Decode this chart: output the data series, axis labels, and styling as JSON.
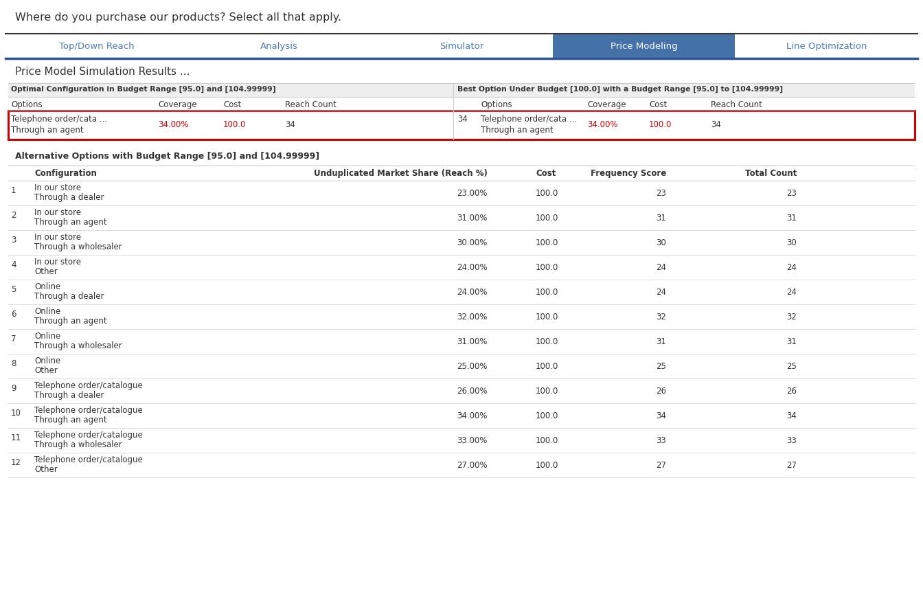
{
  "title_question": "Where do you purchase our products? Select all that apply.",
  "tabs": [
    "Top/Down Reach",
    "Analysis",
    "Simulator",
    "Price Modeling",
    "Line Optimization"
  ],
  "active_tab": "Price Modeling",
  "section_title": "Price Model Simulation Results ...",
  "optimal_header": "Optimal Configuration in Budget Range [95.0] and [104.99999]",
  "best_header": "Best Option Under Budget [100.0] with a Budget Range [95.0] to [104.99999]",
  "optimal_cols": [
    "Options",
    "Coverage",
    "Cost",
    "Reach Count"
  ],
  "best_cols": [
    "Options",
    "Coverage",
    "Cost",
    "Reach Count"
  ],
  "optimal_row_line1": "Telephone order/cata ...",
  "optimal_row_line2": "Through an agent",
  "optimal_coverage": "34.00%",
  "optimal_cost": "100.0",
  "optimal_reach": "34",
  "best_row_line1": "Telephone order/cata ...",
  "best_row_line2": "Through an agent",
  "best_coverage": "34.00%",
  "best_cost": "100.0",
  "best_reach": "34",
  "best_reach_prefix": "34",
  "alt_header": "Alternative Options with Budget Range [95.0] and [104.99999]",
  "alt_col_num": "",
  "alt_col_config": "Configuration",
  "alt_col_share": "Unduplicated Market Share (Reach %)",
  "alt_col_cost": "Cost",
  "alt_col_freq": "Frequency Score",
  "alt_col_total": "Total Count",
  "alt_rows": [
    [
      "1",
      "In our store",
      "Through a dealer",
      "23.00%",
      "100.0",
      "23",
      "23"
    ],
    [
      "2",
      "In our store",
      "Through an agent",
      "31.00%",
      "100.0",
      "31",
      "31"
    ],
    [
      "3",
      "In our store",
      "Through a wholesaler",
      "30.00%",
      "100.0",
      "30",
      "30"
    ],
    [
      "4",
      "In our store",
      "Other",
      "24.00%",
      "100.0",
      "24",
      "24"
    ],
    [
      "5",
      "Online",
      "Through a dealer",
      "24.00%",
      "100.0",
      "24",
      "24"
    ],
    [
      "6",
      "Online",
      "Through an agent",
      "32.00%",
      "100.0",
      "32",
      "32"
    ],
    [
      "7",
      "Online",
      "Through a wholesaler",
      "31.00%",
      "100.0",
      "31",
      "31"
    ],
    [
      "8",
      "Online",
      "Other",
      "25.00%",
      "100.0",
      "25",
      "25"
    ],
    [
      "9",
      "Telephone order/catalogue",
      "Through a dealer",
      "26.00%",
      "100.0",
      "26",
      "26"
    ],
    [
      "10",
      "Telephone order/catalogue",
      "Through an agent",
      "34.00%",
      "100.0",
      "34",
      "34"
    ],
    [
      "11",
      "Telephone order/catalogue",
      "Through a wholesaler",
      "33.00%",
      "100.0",
      "33",
      "33"
    ],
    [
      "12",
      "Telephone order/catalogue",
      "Other",
      "27.00%",
      "100.0",
      "27",
      "27"
    ]
  ],
  "bg_color": "#ffffff",
  "tab_active_bg": "#4472a8",
  "tab_active_fg": "#ffffff",
  "tab_inactive_fg": "#4a7cb5",
  "border_color": "#cccccc",
  "red_border": "#cc0000",
  "text_dark": "#333333",
  "text_red": "#cc0000",
  "subheader_bg": "#eeeeee",
  "line_color": "#dddddd",
  "question_color": "#333333",
  "tab_border_color": "#2a5496",
  "outer_border_color": "#aaaaaa"
}
